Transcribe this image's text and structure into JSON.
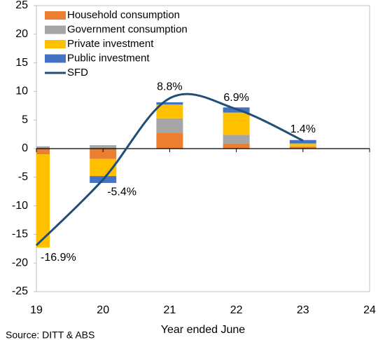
{
  "chart_data": {
    "type": "bar",
    "x": [
      19,
      20,
      21,
      22,
      23
    ],
    "series": [
      {
        "name": "Household consumption",
        "color": "#ED7D31",
        "values": [
          -1.0,
          -1.8,
          2.8,
          0.9,
          0.3
        ]
      },
      {
        "name": "Government consumption",
        "color": "#A5A5A5",
        "values": [
          0.4,
          0.6,
          2.5,
          1.5,
          0.1
        ]
      },
      {
        "name": "Private investment",
        "color": "#FFC000",
        "values": [
          -16.3,
          -3.0,
          2.4,
          3.9,
          0.5
        ]
      },
      {
        "name": "Public investment",
        "color": "#4472C4",
        "values": [
          0,
          -1.2,
          0.4,
          0.9,
          0.6
        ]
      },
      {
        "name": "SFD",
        "color": "#1F4E79",
        "type": "line",
        "values": [
          -16.9,
          -5.4,
          8.8,
          6.9,
          1.4
        ],
        "value_labels": [
          "-16.9%",
          "-5.4%",
          "8.8%",
          "6.9%",
          "1.4%"
        ]
      }
    ],
    "xlabel": "Year ended June",
    "source": "Source: DITT & ABS",
    "xlim": [
      19,
      24
    ],
    "xticks": [
      19,
      20,
      21,
      22,
      23,
      24
    ],
    "ylim": [
      -25,
      25
    ],
    "yticks": [
      -25,
      -20,
      -15,
      -10,
      -5,
      0,
      5,
      10,
      15,
      20,
      25
    ],
    "legend": "upper-left"
  }
}
